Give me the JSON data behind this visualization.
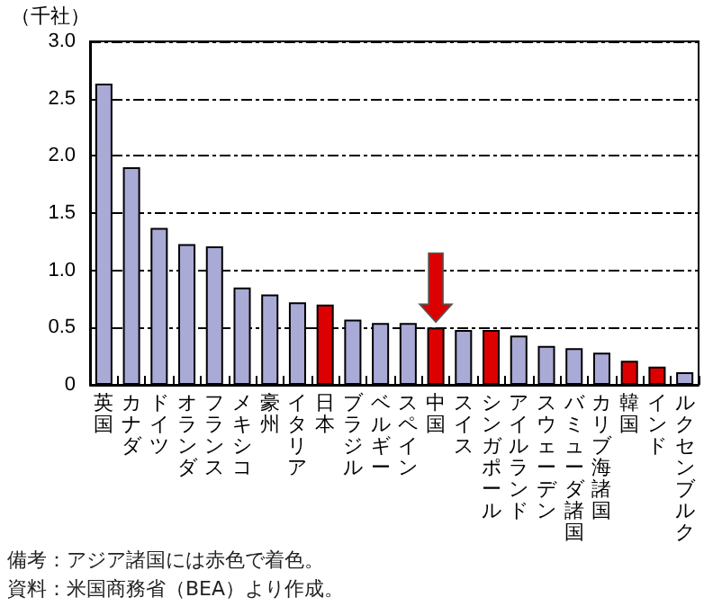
{
  "chart_data": {
    "type": "bar",
    "ylabel": "（千社）",
    "categories": [
      "英国",
      "カナダ",
      "ドイツ",
      "オランダ",
      "フランス",
      "メキシコ",
      "豪州",
      "イタリア",
      "日本",
      "ブラジル",
      "ベルギー",
      "スペイン",
      "中国",
      "スイス",
      "シンガポール",
      "アイルランド",
      "スウェーデン",
      "バミューダ諸国",
      "カリブ海諸国",
      "韓国",
      "インド",
      "ルクセンブルク"
    ],
    "values": [
      2.63,
      1.9,
      1.37,
      1.23,
      1.21,
      0.85,
      0.79,
      0.72,
      0.7,
      0.57,
      0.54,
      0.54,
      0.5,
      0.48,
      0.48,
      0.43,
      0.34,
      0.32,
      0.28,
      0.21,
      0.16,
      0.11
    ],
    "colors": [
      "#aaaad6",
      "#aaaad6",
      "#aaaad6",
      "#aaaad6",
      "#aaaad6",
      "#aaaad6",
      "#aaaad6",
      "#aaaad6",
      "#dd0000",
      "#aaaad6",
      "#aaaad6",
      "#aaaad6",
      "#dd0000",
      "#aaaad6",
      "#dd0000",
      "#aaaad6",
      "#aaaad6",
      "#aaaad6",
      "#aaaad6",
      "#dd0000",
      "#dd0000",
      "#aaaad6"
    ],
    "ylim": [
      0,
      3
    ],
    "yticks": [
      0,
      {
        "value": 0.5,
        "label": "0.5"
      },
      {
        "value": 1,
        "label": "1.0"
      },
      {
        "value": 1.5,
        "label": "1.5"
      },
      {
        "value": 2,
        "label": "2.0"
      },
      {
        "value": 2.5,
        "label": "2.5"
      },
      {
        "value": 3,
        "label": "3.0"
      }
    ],
    "grid": "y",
    "annotations": [
      "備考：アジア諸国には赤色で着色。",
      "資料：米国商務省（BEA）より作成。"
    ]
  }
}
